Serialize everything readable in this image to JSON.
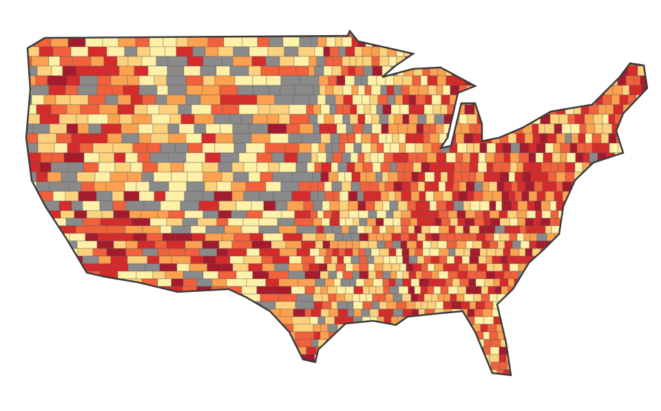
{
  "map": {
    "colors": [
      "#8a8a8a",
      "#fff1a8",
      "#fed27c",
      "#fca14f",
      "#f0613c",
      "#d62b2b",
      "#a51b2e"
    ]
  }
}
